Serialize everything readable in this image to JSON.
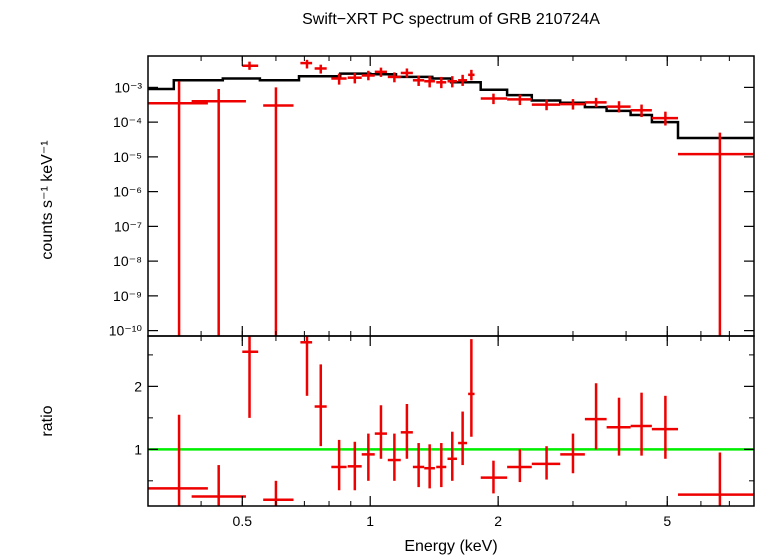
{
  "chart_data": {
    "type": "scatter",
    "title": "Swift−XRT PC spectrum of GRB 210724A",
    "xlabel": "Energy (keV)",
    "x_scale": "log",
    "xlim": [
      0.3,
      8.0
    ],
    "x_ticks": [
      {
        "value": 0.5,
        "label": "0.5"
      },
      {
        "value": 1,
        "label": "1"
      },
      {
        "value": 2,
        "label": "2"
      },
      {
        "value": 5,
        "label": "5"
      }
    ],
    "panels": [
      {
        "id": "spectrum",
        "ylabel": "counts s⁻¹ keV⁻¹",
        "y_scale": "log",
        "ylim": [
          7e-11,
          0.008
        ],
        "y_ticks": [
          {
            "value": 0.001,
            "label": "10⁻³"
          },
          {
            "value": 0.0001,
            "label": "10⁻⁴"
          },
          {
            "value": 1e-05,
            "label": "10⁻⁵"
          },
          {
            "value": 1e-06,
            "label": "10⁻⁶"
          },
          {
            "value": 1e-07,
            "label": "10⁻⁷"
          },
          {
            "value": 1e-08,
            "label": "10⁻⁸"
          },
          {
            "value": 1e-09,
            "label": "10⁻⁹"
          },
          {
            "value": 1e-10,
            "label": "10⁻¹⁰"
          }
        ],
        "series": [
          {
            "kind": "data-with-errors",
            "color": "#ee0000",
            "points": [
              {
                "x": 0.355,
                "xlo": 0.3,
                "xhi": 0.415,
                "y": 0.00035,
                "ylo": 7e-11,
                "yhi": 0.0015
              },
              {
                "x": 0.44,
                "xlo": 0.38,
                "xhi": 0.51,
                "y": 0.0004,
                "ylo": 7e-11,
                "yhi": 0.0009
              },
              {
                "x": 0.52,
                "xlo": 0.5,
                "xhi": 0.545,
                "y": 0.0042,
                "ylo": 0.0032,
                "yhi": 0.0055
              },
              {
                "x": 0.6,
                "xlo": 0.56,
                "xhi": 0.66,
                "y": 0.0003,
                "ylo": 7e-11,
                "yhi": 0.001
              },
              {
                "x": 0.71,
                "xlo": 0.685,
                "xhi": 0.73,
                "y": 0.005,
                "ylo": 0.0035,
                "yhi": 0.0062
              },
              {
                "x": 0.765,
                "xlo": 0.74,
                "xhi": 0.79,
                "y": 0.0035,
                "ylo": 0.0025,
                "yhi": 0.0045
              },
              {
                "x": 0.845,
                "xlo": 0.81,
                "xhi": 0.88,
                "y": 0.0018,
                "ylo": 0.0012,
                "yhi": 0.0025
              },
              {
                "x": 0.92,
                "xlo": 0.885,
                "xhi": 0.955,
                "y": 0.0019,
                "ylo": 0.0013,
                "yhi": 0.0026
              },
              {
                "x": 0.99,
                "xlo": 0.955,
                "xhi": 1.025,
                "y": 0.0022,
                "ylo": 0.0016,
                "yhi": 0.003
              },
              {
                "x": 1.06,
                "xlo": 1.025,
                "xhi": 1.095,
                "y": 0.0028,
                "ylo": 0.002,
                "yhi": 0.0037
              },
              {
                "x": 1.14,
                "xlo": 1.1,
                "xhi": 1.18,
                "y": 0.002,
                "ylo": 0.0014,
                "yhi": 0.0027
              },
              {
                "x": 1.22,
                "xlo": 1.18,
                "xhi": 1.26,
                "y": 0.0026,
                "ylo": 0.0019,
                "yhi": 0.0035
              },
              {
                "x": 1.3,
                "xlo": 1.26,
                "xhi": 1.34,
                "y": 0.0016,
                "ylo": 0.0011,
                "yhi": 0.0022
              },
              {
                "x": 1.38,
                "xlo": 1.34,
                "xhi": 1.42,
                "y": 0.0015,
                "ylo": 0.001,
                "yhi": 0.0021
              },
              {
                "x": 1.47,
                "xlo": 1.43,
                "xhi": 1.51,
                "y": 0.0014,
                "ylo": 0.00095,
                "yhi": 0.002
              },
              {
                "x": 1.56,
                "xlo": 1.52,
                "xhi": 1.6,
                "y": 0.0015,
                "ylo": 0.001,
                "yhi": 0.0021
              },
              {
                "x": 1.65,
                "xlo": 1.61,
                "xhi": 1.69,
                "y": 0.0016,
                "ylo": 0.0011,
                "yhi": 0.0023
              },
              {
                "x": 1.73,
                "xlo": 1.7,
                "xhi": 1.76,
                "y": 0.0023,
                "ylo": 0.0016,
                "yhi": 0.0032
              },
              {
                "x": 1.95,
                "xlo": 1.82,
                "xhi": 2.1,
                "y": 0.00048,
                "ylo": 0.00033,
                "yhi": 0.00066
              },
              {
                "x": 2.25,
                "xlo": 2.1,
                "xhi": 2.4,
                "y": 0.00045,
                "ylo": 0.00031,
                "yhi": 0.00062
              },
              {
                "x": 2.6,
                "xlo": 2.4,
                "xhi": 2.8,
                "y": 0.00032,
                "ylo": 0.00022,
                "yhi": 0.00044
              },
              {
                "x": 3.0,
                "xlo": 2.8,
                "xhi": 3.2,
                "y": 0.00033,
                "ylo": 0.00023,
                "yhi": 0.00046
              },
              {
                "x": 3.4,
                "xlo": 3.2,
                "xhi": 3.6,
                "y": 0.00037,
                "ylo": 0.00027,
                "yhi": 0.0005
              },
              {
                "x": 3.85,
                "xlo": 3.6,
                "xhi": 4.1,
                "y": 0.00028,
                "ylo": 0.00019,
                "yhi": 0.0004
              },
              {
                "x": 4.35,
                "xlo": 4.1,
                "xhi": 4.6,
                "y": 0.00022,
                "ylo": 0.00014,
                "yhi": 0.00032
              },
              {
                "x": 4.95,
                "xlo": 4.6,
                "xhi": 5.3,
                "y": 0.00013,
                "ylo": 8e-05,
                "yhi": 0.0002
              },
              {
                "x": 6.65,
                "xlo": 5.3,
                "xhi": 8.0,
                "y": 1.2e-05,
                "ylo": 7e-11,
                "yhi": 5e-05
              }
            ]
          },
          {
            "kind": "model-step",
            "color": "#000000",
            "steps": [
              {
                "xlo": 0.3,
                "xhi": 0.345,
                "y": 0.0009
              },
              {
                "xlo": 0.345,
                "xhi": 0.45,
                "y": 0.0016
              },
              {
                "xlo": 0.45,
                "xhi": 0.55,
                "y": 0.0018
              },
              {
                "xlo": 0.55,
                "xhi": 0.68,
                "y": 0.0016
              },
              {
                "xlo": 0.68,
                "xhi": 0.85,
                "y": 0.0021
              },
              {
                "xlo": 0.85,
                "xhi": 1.0,
                "y": 0.0025
              },
              {
                "xlo": 1.0,
                "xhi": 1.15,
                "y": 0.0024
              },
              {
                "xlo": 1.15,
                "xhi": 1.4,
                "y": 0.002
              },
              {
                "xlo": 1.4,
                "xhi": 1.55,
                "y": 0.0018
              },
              {
                "xlo": 1.55,
                "xhi": 1.82,
                "y": 0.0014
              },
              {
                "xlo": 1.82,
                "xhi": 2.1,
                "y": 0.00085
              },
              {
                "xlo": 2.1,
                "xhi": 2.4,
                "y": 0.0006
              },
              {
                "xlo": 2.4,
                "xhi": 2.8,
                "y": 0.00042
              },
              {
                "xlo": 2.8,
                "xhi": 3.2,
                "y": 0.00036
              },
              {
                "xlo": 3.2,
                "xhi": 3.6,
                "y": 0.00027
              },
              {
                "xlo": 3.6,
                "xhi": 4.1,
                "y": 0.00021
              },
              {
                "xlo": 4.1,
                "xhi": 4.6,
                "y": 0.00016
              },
              {
                "xlo": 4.6,
                "xhi": 5.3,
                "y": 0.0001
              },
              {
                "xlo": 5.3,
                "xhi": 8.0,
                "y": 3.5e-05
              }
            ]
          }
        ]
      },
      {
        "id": "ratio",
        "ylabel": "ratio",
        "y_scale": "linear",
        "ylim": [
          0.1,
          2.8
        ],
        "y_ticks": [
          {
            "value": 1,
            "label": "1"
          },
          {
            "value": 2,
            "label": "2"
          }
        ],
        "reference_line": {
          "y": 1,
          "color": "#00ee00"
        },
        "series": [
          {
            "kind": "data-with-errors",
            "color": "#ee0000",
            "points": [
              {
                "x": 0.355,
                "xlo": 0.3,
                "xhi": 0.415,
                "y": 0.38,
                "ylo": 0.1,
                "yhi": 1.55
              },
              {
                "x": 0.44,
                "xlo": 0.38,
                "xhi": 0.51,
                "y": 0.25,
                "ylo": 0.1,
                "yhi": 0.75
              },
              {
                "x": 0.52,
                "xlo": 0.5,
                "xhi": 0.545,
                "y": 2.55,
                "ylo": 1.5,
                "yhi": 2.8
              },
              {
                "x": 0.6,
                "xlo": 0.56,
                "xhi": 0.66,
                "y": 0.2,
                "ylo": 0.1,
                "yhi": 0.5
              },
              {
                "x": 0.71,
                "xlo": 0.685,
                "xhi": 0.73,
                "y": 2.7,
                "ylo": 1.85,
                "yhi": 2.8
              },
              {
                "x": 0.765,
                "xlo": 0.74,
                "xhi": 0.79,
                "y": 1.68,
                "ylo": 1.05,
                "yhi": 2.35
              },
              {
                "x": 0.845,
                "xlo": 0.81,
                "xhi": 0.88,
                "y": 0.72,
                "ylo": 0.35,
                "yhi": 1.15
              },
              {
                "x": 0.92,
                "xlo": 0.885,
                "xhi": 0.955,
                "y": 0.73,
                "ylo": 0.35,
                "yhi": 1.12
              },
              {
                "x": 0.99,
                "xlo": 0.955,
                "xhi": 1.025,
                "y": 0.92,
                "ylo": 0.5,
                "yhi": 1.25
              },
              {
                "x": 1.06,
                "xlo": 1.025,
                "xhi": 1.095,
                "y": 1.25,
                "ylo": 0.85,
                "yhi": 1.7
              },
              {
                "x": 1.14,
                "xlo": 1.1,
                "xhi": 1.18,
                "y": 0.83,
                "ylo": 0.5,
                "yhi": 1.25
              },
              {
                "x": 1.22,
                "xlo": 1.18,
                "xhi": 1.26,
                "y": 1.27,
                "ylo": 0.85,
                "yhi": 1.72
              },
              {
                "x": 1.3,
                "xlo": 1.26,
                "xhi": 1.34,
                "y": 0.72,
                "ylo": 0.4,
                "yhi": 1.1
              },
              {
                "x": 1.38,
                "xlo": 1.34,
                "xhi": 1.42,
                "y": 0.7,
                "ylo": 0.38,
                "yhi": 1.08
              },
              {
                "x": 1.47,
                "xlo": 1.43,
                "xhi": 1.51,
                "y": 0.72,
                "ylo": 0.4,
                "yhi": 1.1
              },
              {
                "x": 1.56,
                "xlo": 1.52,
                "xhi": 1.6,
                "y": 0.85,
                "ylo": 0.5,
                "yhi": 1.28
              },
              {
                "x": 1.65,
                "xlo": 1.61,
                "xhi": 1.69,
                "y": 1.1,
                "ylo": 0.75,
                "yhi": 1.6
              },
              {
                "x": 1.73,
                "xlo": 1.7,
                "xhi": 1.76,
                "y": 1.88,
                "ylo": 1.2,
                "yhi": 2.75
              },
              {
                "x": 1.95,
                "xlo": 1.82,
                "xhi": 2.1,
                "y": 0.55,
                "ylo": 0.3,
                "yhi": 0.82
              },
              {
                "x": 2.25,
                "xlo": 2.1,
                "xhi": 2.4,
                "y": 0.72,
                "ylo": 0.48,
                "yhi": 1.0
              },
              {
                "x": 2.6,
                "xlo": 2.4,
                "xhi": 2.8,
                "y": 0.77,
                "ylo": 0.52,
                "yhi": 1.05
              },
              {
                "x": 3.0,
                "xlo": 2.8,
                "xhi": 3.2,
                "y": 0.92,
                "ylo": 0.62,
                "yhi": 1.25
              },
              {
                "x": 3.4,
                "xlo": 3.2,
                "xhi": 3.6,
                "y": 1.48,
                "ylo": 1.0,
                "yhi": 2.05
              },
              {
                "x": 3.85,
                "xlo": 3.6,
                "xhi": 4.1,
                "y": 1.35,
                "ylo": 0.9,
                "yhi": 1.82
              },
              {
                "x": 4.35,
                "xlo": 4.1,
                "xhi": 4.6,
                "y": 1.37,
                "ylo": 0.9,
                "yhi": 1.9
              },
              {
                "x": 4.95,
                "xlo": 4.6,
                "xhi": 5.3,
                "y": 1.32,
                "ylo": 0.85,
                "yhi": 1.85
              },
              {
                "x": 6.65,
                "xlo": 5.3,
                "xhi": 8.0,
                "y": 0.28,
                "ylo": 0.1,
                "yhi": 0.95
              }
            ]
          }
        ]
      }
    ]
  }
}
